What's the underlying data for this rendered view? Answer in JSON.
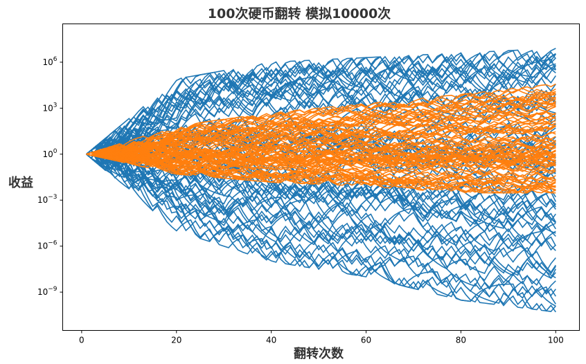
{
  "chart_data": {
    "type": "line",
    "title": "100次硬币翻转 模拟10000次",
    "xlabel": "翻转次数",
    "ylabel": "收益",
    "xlim": [
      -4,
      105
    ],
    "ylim_log10": [
      -11.5,
      8.5
    ],
    "yscale": "log",
    "grid": false,
    "x_ticks": [
      {
        "value": 0,
        "label": "0"
      },
      {
        "value": 20,
        "label": "20"
      },
      {
        "value": 40,
        "label": "40"
      },
      {
        "value": 60,
        "label": "60"
      },
      {
        "value": 80,
        "label": "80"
      },
      {
        "value": 100,
        "label": "100"
      }
    ],
    "y_ticks": [
      {
        "value": 1e-09,
        "base": "10",
        "exp": "−9"
      },
      {
        "value": 1e-06,
        "base": "10",
        "exp": "−6"
      },
      {
        "value": 0.001,
        "base": "10",
        "exp": "−3"
      },
      {
        "value": 1,
        "base": "10",
        "exp": "0"
      },
      {
        "value": 1000,
        "base": "10",
        "exp": "3"
      },
      {
        "value": 1000000,
        "base": "10",
        "exp": "6"
      }
    ],
    "series": [
      {
        "color": "#1f77b4",
        "x": [
          1,
          100
        ],
        "upper_envelope": [
          [
            1,
            1
          ],
          [
            20,
            80000
          ],
          [
            40,
            1000000
          ],
          [
            60,
            2000000
          ],
          [
            80,
            4000000
          ],
          [
            100,
            8000000
          ]
        ],
        "lower_envelope": [
          [
            1,
            1
          ],
          [
            20,
            1e-05
          ],
          [
            40,
            1e-07
          ],
          [
            60,
            1e-08
          ],
          [
            80,
            3e-10
          ],
          [
            100,
            5e-11
          ]
        ]
      },
      {
        "color": "#ff7f0e",
        "x": [
          1,
          100
        ],
        "upper_envelope": [
          [
            1,
            1
          ],
          [
            20,
            70
          ],
          [
            40,
            500
          ],
          [
            60,
            2000
          ],
          [
            80,
            8000
          ],
          [
            100,
            40000
          ]
        ],
        "lower_envelope": [
          [
            1,
            1
          ],
          [
            20,
            0.05
          ],
          [
            40,
            0.015
          ],
          [
            60,
            0.008
          ],
          [
            80,
            0.003
          ],
          [
            100,
            0.003
          ]
        ]
      }
    ]
  }
}
